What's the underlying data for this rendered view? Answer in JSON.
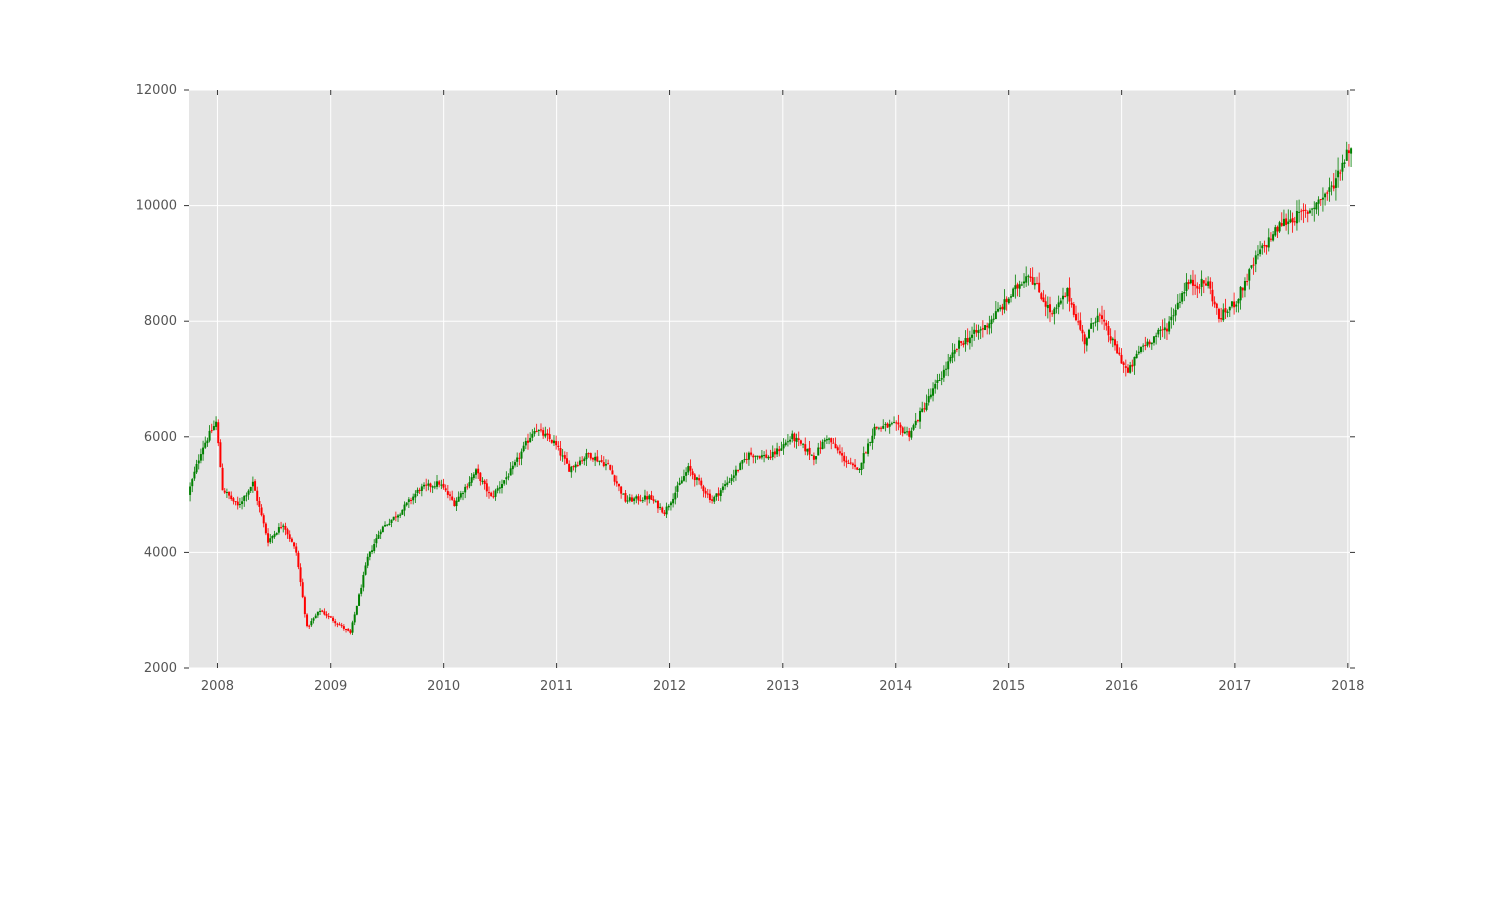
{
  "chart_data": {
    "type": "candlestick",
    "title": "",
    "xlabel": "",
    "ylabel": "",
    "xlim": [
      "2007-10-01",
      "2018-01-08"
    ],
    "ylim": [
      2000,
      12000
    ],
    "x_tick_labels": [
      "2008",
      "2009",
      "2010",
      "2011",
      "2012",
      "2013",
      "2014",
      "2015",
      "2016",
      "2017",
      "2018"
    ],
    "y_tick_labels": [
      "2000",
      "4000",
      "6000",
      "8000",
      "10000",
      "12000"
    ],
    "y_ticks": [
      2000,
      4000,
      6000,
      8000,
      10000,
      12000
    ],
    "grid": true,
    "legend": "none",
    "colors": {
      "up": "#008000",
      "down": "#ff0000",
      "plot_background": "#e5e5e5",
      "grid": "#ffffff",
      "text": "#555555"
    },
    "anchors": [
      [
        "2007-10-01",
        5000
      ],
      [
        "2007-11-15",
        5800
      ],
      [
        "2007-12-31",
        6250
      ],
      [
        "2008-01-21",
        5100
      ],
      [
        "2008-03-10",
        4800
      ],
      [
        "2008-04-28",
        5200
      ],
      [
        "2008-06-16",
        4200
      ],
      [
        "2008-08-04",
        4500
      ],
      [
        "2008-09-15",
        4000
      ],
      [
        "2008-10-20",
        2700
      ],
      [
        "2008-12-01",
        3000
      ],
      [
        "2009-03-09",
        2600
      ],
      [
        "2009-05-04",
        3900
      ],
      [
        "2009-06-15",
        4400
      ],
      [
        "2009-08-17",
        4700
      ],
      [
        "2009-10-19",
        5100
      ],
      [
        "2009-12-21",
        5200
      ],
      [
        "2010-02-08",
        4850
      ],
      [
        "2010-04-19",
        5400
      ],
      [
        "2010-06-07",
        4950
      ],
      [
        "2010-08-16",
        5450
      ],
      [
        "2010-10-25",
        6150
      ],
      [
        "2010-12-27",
        5900
      ],
      [
        "2011-02-14",
        5450
      ],
      [
        "2011-04-18",
        5700
      ],
      [
        "2011-06-20",
        5500
      ],
      [
        "2011-08-15",
        4900
      ],
      [
        "2011-10-31",
        4950
      ],
      [
        "2011-12-19",
        4700
      ],
      [
        "2012-03-05",
        5450
      ],
      [
        "2012-05-21",
        4900
      ],
      [
        "2012-07-23",
        5300
      ],
      [
        "2012-09-17",
        5700
      ],
      [
        "2012-11-26",
        5650
      ],
      [
        "2013-02-04",
        6000
      ],
      [
        "2013-04-15",
        5650
      ],
      [
        "2013-05-27",
        6000
      ],
      [
        "2013-07-15",
        5650
      ],
      [
        "2013-09-02",
        5400
      ],
      [
        "2013-10-28",
        6150
      ],
      [
        "2013-12-30",
        6200
      ],
      [
        "2014-02-17",
        6050
      ],
      [
        "2014-05-05",
        6800
      ],
      [
        "2014-07-28",
        7600
      ],
      [
        "2014-10-20",
        7900
      ],
      [
        "2014-12-29",
        8350
      ],
      [
        "2015-03-09",
        8850
      ],
      [
        "2015-05-25",
        8100
      ],
      [
        "2015-07-13",
        8500
      ],
      [
        "2015-09-07",
        7650
      ],
      [
        "2015-10-19",
        8150
      ],
      [
        "2016-01-25",
        7100
      ],
      [
        "2016-03-07",
        7550
      ],
      [
        "2016-05-30",
        7900
      ],
      [
        "2016-08-01",
        8650
      ],
      [
        "2016-10-10",
        8650
      ],
      [
        "2016-11-14",
        8050
      ],
      [
        "2017-01-09",
        8350
      ],
      [
        "2017-03-20",
        9150
      ],
      [
        "2017-06-05",
        9700
      ],
      [
        "2017-08-28",
        9900
      ],
      [
        "2017-11-13",
        10300
      ],
      [
        "2018-01-08",
        11000
      ]
    ]
  }
}
